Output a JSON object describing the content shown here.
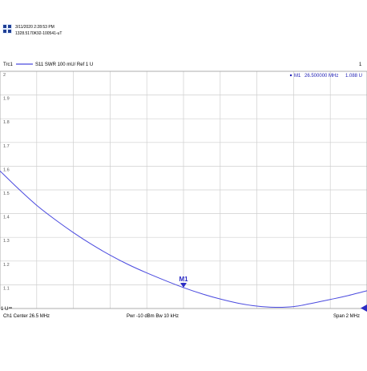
{
  "header": {
    "timestamp": "3/11/2020 2:28:53 PM",
    "device_id": "1328.5170K92-100541-uT"
  },
  "trace": {
    "name": "Trc1",
    "description": "S11  SWR  100 mU/ Ref 1 U",
    "number": "1"
  },
  "marker": {
    "label": "M1",
    "readout_id": "M1",
    "readout_freq": "26.500000  MHz",
    "readout_value": "1.088 U"
  },
  "footer": {
    "channel": "Ch1  Center  26.5 MHz",
    "power_bw": "Pwr  -10 dBm  Bw  10 kHz",
    "span": "Span  2 MHz"
  },
  "colors": {
    "trace": "#4a4adf",
    "marker": "#2c2cc4",
    "grid": "#cfcfcf",
    "readout": "#1e1eb4"
  },
  "chart_data": {
    "type": "line",
    "title": "",
    "xlabel": "",
    "ylabel": "",
    "xlim": [
      25.5,
      27.5
    ],
    "ylim": [
      1.0,
      2.0
    ],
    "x_divisions": 10,
    "y_divisions": 10,
    "y_tick_labels": [
      "2",
      "1.9",
      "1.8",
      "1.7",
      "1.6",
      "1.5",
      "1.4",
      "1.3",
      "1.2",
      "1.1"
    ],
    "y_ref_label": "1 U",
    "grid": true,
    "series": [
      {
        "x": [
          25.5,
          25.6,
          25.7,
          25.8,
          25.9,
          26.0,
          26.1,
          26.2,
          26.3,
          26.4,
          26.5,
          26.6,
          26.7,
          26.8,
          26.9,
          27.0,
          27.1,
          27.2,
          27.3,
          27.4,
          27.5
        ],
        "values": [
          1.58,
          1.505,
          1.435,
          1.375,
          1.32,
          1.27,
          1.225,
          1.185,
          1.15,
          1.118,
          1.088,
          1.062,
          1.04,
          1.022,
          1.01,
          1.005,
          1.008,
          1.022,
          1.038,
          1.055,
          1.075
        ]
      }
    ],
    "markers": [
      {
        "label": "M1",
        "x": 26.5,
        "y": 1.088
      }
    ]
  }
}
